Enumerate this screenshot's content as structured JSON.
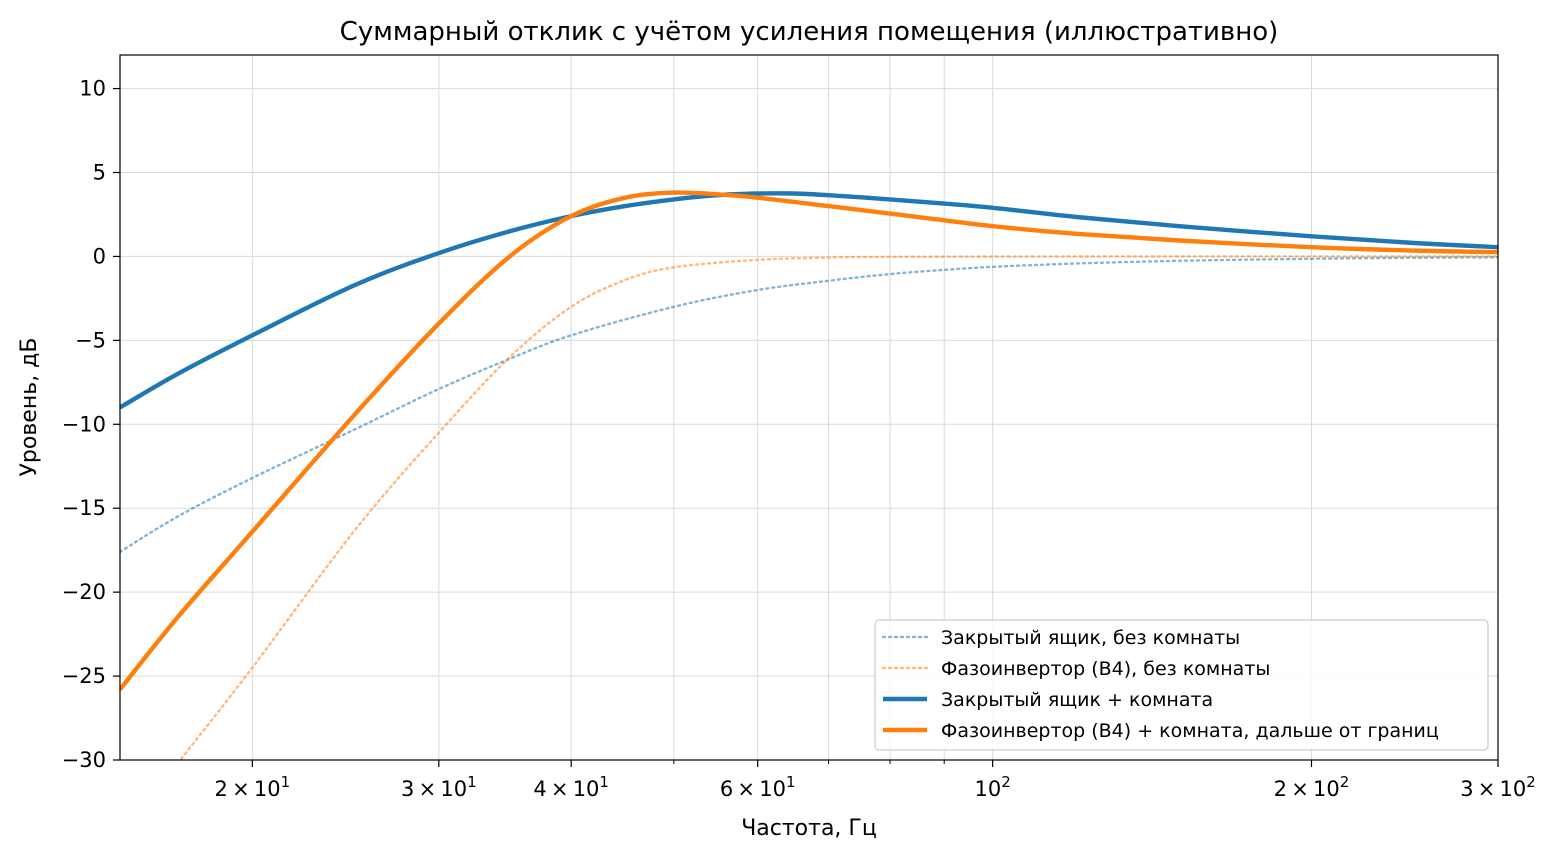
{
  "chart_data": {
    "type": "line",
    "title": "Суммарный отклик с учётом усиления помещения (иллюстративно)",
    "xlabel": "Частота, Гц",
    "ylabel": "Уровень, дБ",
    "xscale": "log",
    "xlim": [
      15,
      300
    ],
    "ylim": [
      -30,
      12
    ],
    "grid": true,
    "legend_position": "lower-right",
    "x_ticks": [
      {
        "value": 20,
        "mantissa": "2",
        "base": "10",
        "exp": "1"
      },
      {
        "value": 30,
        "mantissa": "3",
        "base": "10",
        "exp": "1"
      },
      {
        "value": 40,
        "mantissa": "4",
        "base": "10",
        "exp": "1"
      },
      {
        "value": 60,
        "mantissa": "6",
        "base": "10",
        "exp": "1"
      },
      {
        "value": 100,
        "mantissa": "",
        "base": "10",
        "exp": "2"
      },
      {
        "value": 200,
        "mantissa": "2",
        "base": "10",
        "exp": "2"
      },
      {
        "value": 300,
        "mantissa": "3",
        "base": "10",
        "exp": "2"
      }
    ],
    "x_minor_grid": [
      50,
      70,
      80,
      90
    ],
    "y_ticks": [
      {
        "value": 10,
        "label": "10"
      },
      {
        "value": 5,
        "label": "5"
      },
      {
        "value": 0,
        "label": "0"
      },
      {
        "value": -5,
        "label": "−5"
      },
      {
        "value": -10,
        "label": "−10"
      },
      {
        "value": -15,
        "label": "−15"
      },
      {
        "value": -20,
        "label": "−20"
      },
      {
        "value": -25,
        "label": "−25"
      },
      {
        "value": -30,
        "label": "−30"
      }
    ],
    "series": [
      {
        "name": "Закрытый ящик, без комнаты",
        "color": "#1f77b4",
        "style": "dotted",
        "opacity": 0.55,
        "points": [
          [
            15,
            -17.6
          ],
          [
            17,
            -15.5
          ],
          [
            20,
            -13.2
          ],
          [
            25,
            -10.3
          ],
          [
            30,
            -7.9
          ],
          [
            35,
            -6.1
          ],
          [
            40,
            -4.7
          ],
          [
            50,
            -3.0
          ],
          [
            60,
            -2.0
          ],
          [
            70,
            -1.45
          ],
          [
            80,
            -1.05
          ],
          [
            90,
            -0.8
          ],
          [
            100,
            -0.62
          ],
          [
            120,
            -0.42
          ],
          [
            150,
            -0.26
          ],
          [
            200,
            -0.14
          ],
          [
            250,
            -0.08
          ],
          [
            300,
            -0.05
          ]
        ]
      },
      {
        "name": "Фазоинвертор (B4), без комнаты",
        "color": "#ff7f0e",
        "style": "dotted",
        "opacity": 0.55,
        "points": [
          [
            17,
            -30.2
          ],
          [
            20,
            -24.5
          ],
          [
            25,
            -16.3
          ],
          [
            30,
            -10.5
          ],
          [
            35,
            -6.0
          ],
          [
            40,
            -3.0
          ],
          [
            45,
            -1.4
          ],
          [
            50,
            -0.65
          ],
          [
            60,
            -0.2
          ],
          [
            70,
            -0.07
          ],
          [
            80,
            -0.03
          ],
          [
            100,
            -0.01
          ],
          [
            150,
            0
          ],
          [
            200,
            0
          ],
          [
            300,
            0
          ]
        ]
      },
      {
        "name": "Закрытый ящик + комната",
        "color": "#1f77b4",
        "style": "solid",
        "opacity": 1,
        "points": [
          [
            15,
            -9.0
          ],
          [
            17,
            -7.0
          ],
          [
            20,
            -4.7
          ],
          [
            25,
            -1.7
          ],
          [
            30,
            0.2
          ],
          [
            35,
            1.5
          ],
          [
            40,
            2.4
          ],
          [
            45,
            3.0
          ],
          [
            50,
            3.4
          ],
          [
            55,
            3.65
          ],
          [
            60,
            3.75
          ],
          [
            65,
            3.75
          ],
          [
            70,
            3.65
          ],
          [
            80,
            3.4
          ],
          [
            90,
            3.15
          ],
          [
            100,
            2.9
          ],
          [
            120,
            2.35
          ],
          [
            150,
            1.8
          ],
          [
            200,
            1.2
          ],
          [
            250,
            0.8
          ],
          [
            300,
            0.55
          ]
        ]
      },
      {
        "name": "Фазоинвертор (B4) + комната, дальше от границ",
        "color": "#ff7f0e",
        "style": "solid",
        "opacity": 1,
        "points": [
          [
            15,
            -25.8
          ],
          [
            17,
            -21.5
          ],
          [
            20,
            -16.4
          ],
          [
            25,
            -9.4
          ],
          [
            30,
            -4.0
          ],
          [
            35,
            0.0
          ],
          [
            40,
            2.4
          ],
          [
            45,
            3.5
          ],
          [
            50,
            3.8
          ],
          [
            55,
            3.7
          ],
          [
            60,
            3.5
          ],
          [
            70,
            3.0
          ],
          [
            80,
            2.55
          ],
          [
            90,
            2.15
          ],
          [
            100,
            1.8
          ],
          [
            120,
            1.35
          ],
          [
            150,
            0.95
          ],
          [
            200,
            0.55
          ],
          [
            250,
            0.35
          ],
          [
            300,
            0.25
          ]
        ]
      }
    ]
  }
}
